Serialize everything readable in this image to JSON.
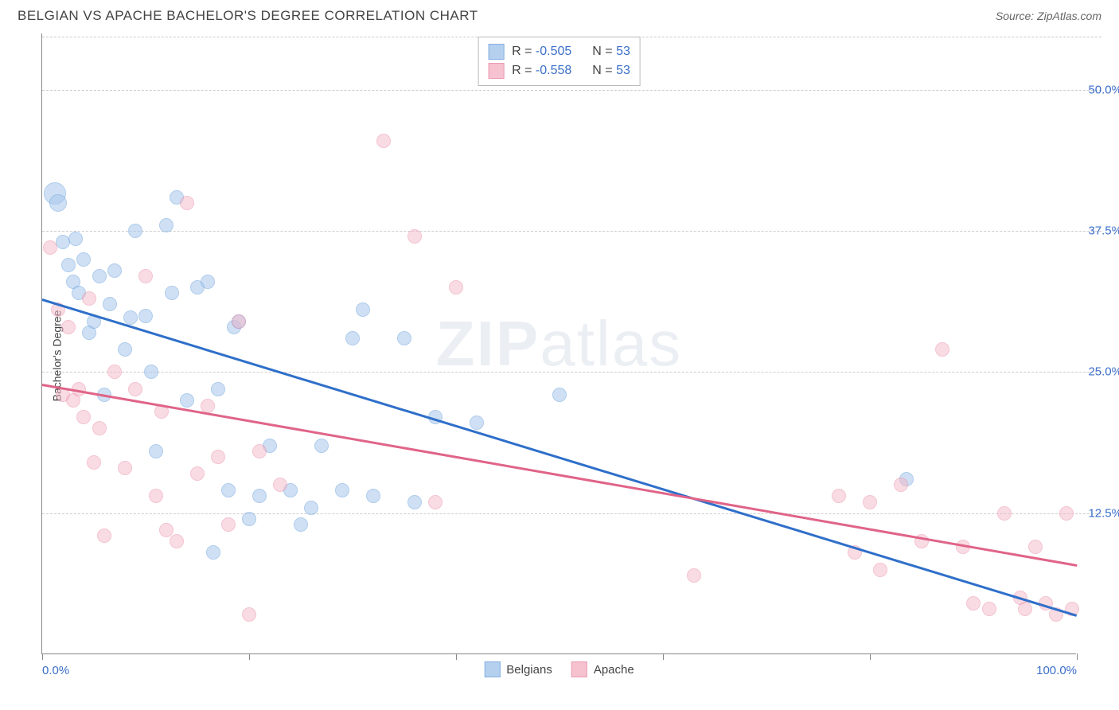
{
  "header": {
    "title": "BELGIAN VS APACHE BACHELOR'S DEGREE CORRELATION CHART",
    "source": "Source: ZipAtlas.com"
  },
  "chart": {
    "type": "scatter",
    "ylabel": "Bachelor's Degree",
    "xlim": [
      0,
      100
    ],
    "ylim": [
      0,
      55
    ],
    "xticks": [
      0,
      20,
      40,
      60,
      80,
      100
    ],
    "yticks": [
      12.5,
      25.0,
      37.5,
      50.0
    ],
    "xtick_labels": {
      "start": "0.0%",
      "end": "100.0%"
    },
    "ytick_labels": [
      "12.5%",
      "25.0%",
      "37.5%",
      "50.0%"
    ],
    "grid_color": "#cccccc",
    "axis_color": "#888888",
    "background_color": "#ffffff",
    "watermark": "ZIPatlas",
    "series": [
      {
        "name": "Belgians",
        "color_fill": "#a8c8ec",
        "color_stroke": "#6fa3dd",
        "fill_opacity": 0.55,
        "marker_radius": 9,
        "R": "-0.505",
        "N": "53",
        "trend": {
          "x1": 0,
          "y1": 31.5,
          "x2": 100,
          "y2": 3.5,
          "color": "#2f6fc9",
          "width": 2.5
        },
        "points": [
          [
            1.2,
            40.8,
            14
          ],
          [
            1.5,
            40.0,
            11
          ],
          [
            2.0,
            36.5
          ],
          [
            2.5,
            34.5
          ],
          [
            3.0,
            33.0
          ],
          [
            3.2,
            36.8
          ],
          [
            3.5,
            32.0
          ],
          [
            4.0,
            35.0
          ],
          [
            4.5,
            28.5
          ],
          [
            5.0,
            29.5
          ],
          [
            5.5,
            33.5
          ],
          [
            6.0,
            23.0
          ],
          [
            6.5,
            31.0
          ],
          [
            7.0,
            34.0
          ],
          [
            8.0,
            27.0
          ],
          [
            8.5,
            29.8
          ],
          [
            9.0,
            37.5
          ],
          [
            10.0,
            30.0
          ],
          [
            10.5,
            25.0
          ],
          [
            11.0,
            18.0
          ],
          [
            12.0,
            38.0
          ],
          [
            12.5,
            32.0
          ],
          [
            13.0,
            40.5
          ],
          [
            14.0,
            22.5
          ],
          [
            15.0,
            32.5
          ],
          [
            16.0,
            33.0
          ],
          [
            16.5,
            9.0
          ],
          [
            17.0,
            23.5
          ],
          [
            18.0,
            14.5
          ],
          [
            18.5,
            29.0
          ],
          [
            19.0,
            29.5
          ],
          [
            20.0,
            12.0
          ],
          [
            21.0,
            14.0
          ],
          [
            22.0,
            18.5
          ],
          [
            24.0,
            14.5
          ],
          [
            25.0,
            11.5
          ],
          [
            26.0,
            13.0
          ],
          [
            27.0,
            18.5
          ],
          [
            29.0,
            14.5
          ],
          [
            30.0,
            28.0
          ],
          [
            31.0,
            30.5
          ],
          [
            32.0,
            14.0
          ],
          [
            35.0,
            28.0
          ],
          [
            36.0,
            13.5
          ],
          [
            38.0,
            21.0
          ],
          [
            42.0,
            20.5
          ],
          [
            50.0,
            23.0
          ],
          [
            83.5,
            15.5
          ]
        ]
      },
      {
        "name": "Apache",
        "color_fill": "#f5b8c8",
        "color_stroke": "#e88aa4",
        "fill_opacity": 0.5,
        "marker_radius": 9,
        "R": "-0.558",
        "N": "53",
        "trend": {
          "x1": 0,
          "y1": 24.0,
          "x2": 100,
          "y2": 8.0,
          "color": "#e06488",
          "width": 2.5
        },
        "points": [
          [
            0.8,
            36.0
          ],
          [
            1.5,
            30.5
          ],
          [
            2.0,
            23.0
          ],
          [
            2.5,
            29.0
          ],
          [
            3.0,
            22.5
          ],
          [
            3.5,
            23.5
          ],
          [
            4.0,
            21.0
          ],
          [
            4.5,
            31.5
          ],
          [
            5.0,
            17.0
          ],
          [
            5.5,
            20.0
          ],
          [
            6.0,
            10.5
          ],
          [
            7.0,
            25.0
          ],
          [
            8.0,
            16.5
          ],
          [
            9.0,
            23.5
          ],
          [
            10.0,
            33.5
          ],
          [
            11.0,
            14.0
          ],
          [
            11.5,
            21.5
          ],
          [
            12.0,
            11.0
          ],
          [
            13.0,
            10.0
          ],
          [
            14.0,
            40.0
          ],
          [
            15.0,
            16.0
          ],
          [
            16.0,
            22.0
          ],
          [
            17.0,
            17.5
          ],
          [
            18.0,
            11.5
          ],
          [
            19.0,
            29.5
          ],
          [
            20.0,
            3.5
          ],
          [
            21.0,
            18.0
          ],
          [
            23.0,
            15.0
          ],
          [
            33.0,
            45.5
          ],
          [
            36.0,
            37.0
          ],
          [
            38.0,
            13.5
          ],
          [
            40.0,
            32.5
          ],
          [
            63.0,
            7.0
          ],
          [
            77.0,
            14.0
          ],
          [
            78.5,
            9.0
          ],
          [
            80.0,
            13.5
          ],
          [
            81.0,
            7.5
          ],
          [
            83.0,
            15.0
          ],
          [
            85.0,
            10.0
          ],
          [
            87.0,
            27.0
          ],
          [
            89.0,
            9.5
          ],
          [
            90.0,
            4.5
          ],
          [
            91.5,
            4.0
          ],
          [
            93.0,
            12.5
          ],
          [
            94.5,
            5.0
          ],
          [
            95.0,
            4.0
          ],
          [
            96.0,
            9.5
          ],
          [
            97.0,
            4.5
          ],
          [
            98.0,
            3.5
          ],
          [
            99.0,
            12.5
          ],
          [
            99.5,
            4.0
          ]
        ]
      }
    ],
    "legend_bottom": [
      {
        "label": "Belgians",
        "fill": "#a8c8ec",
        "stroke": "#6fa3dd"
      },
      {
        "label": "Apache",
        "fill": "#f5b8c8",
        "stroke": "#e88aa4"
      }
    ]
  }
}
